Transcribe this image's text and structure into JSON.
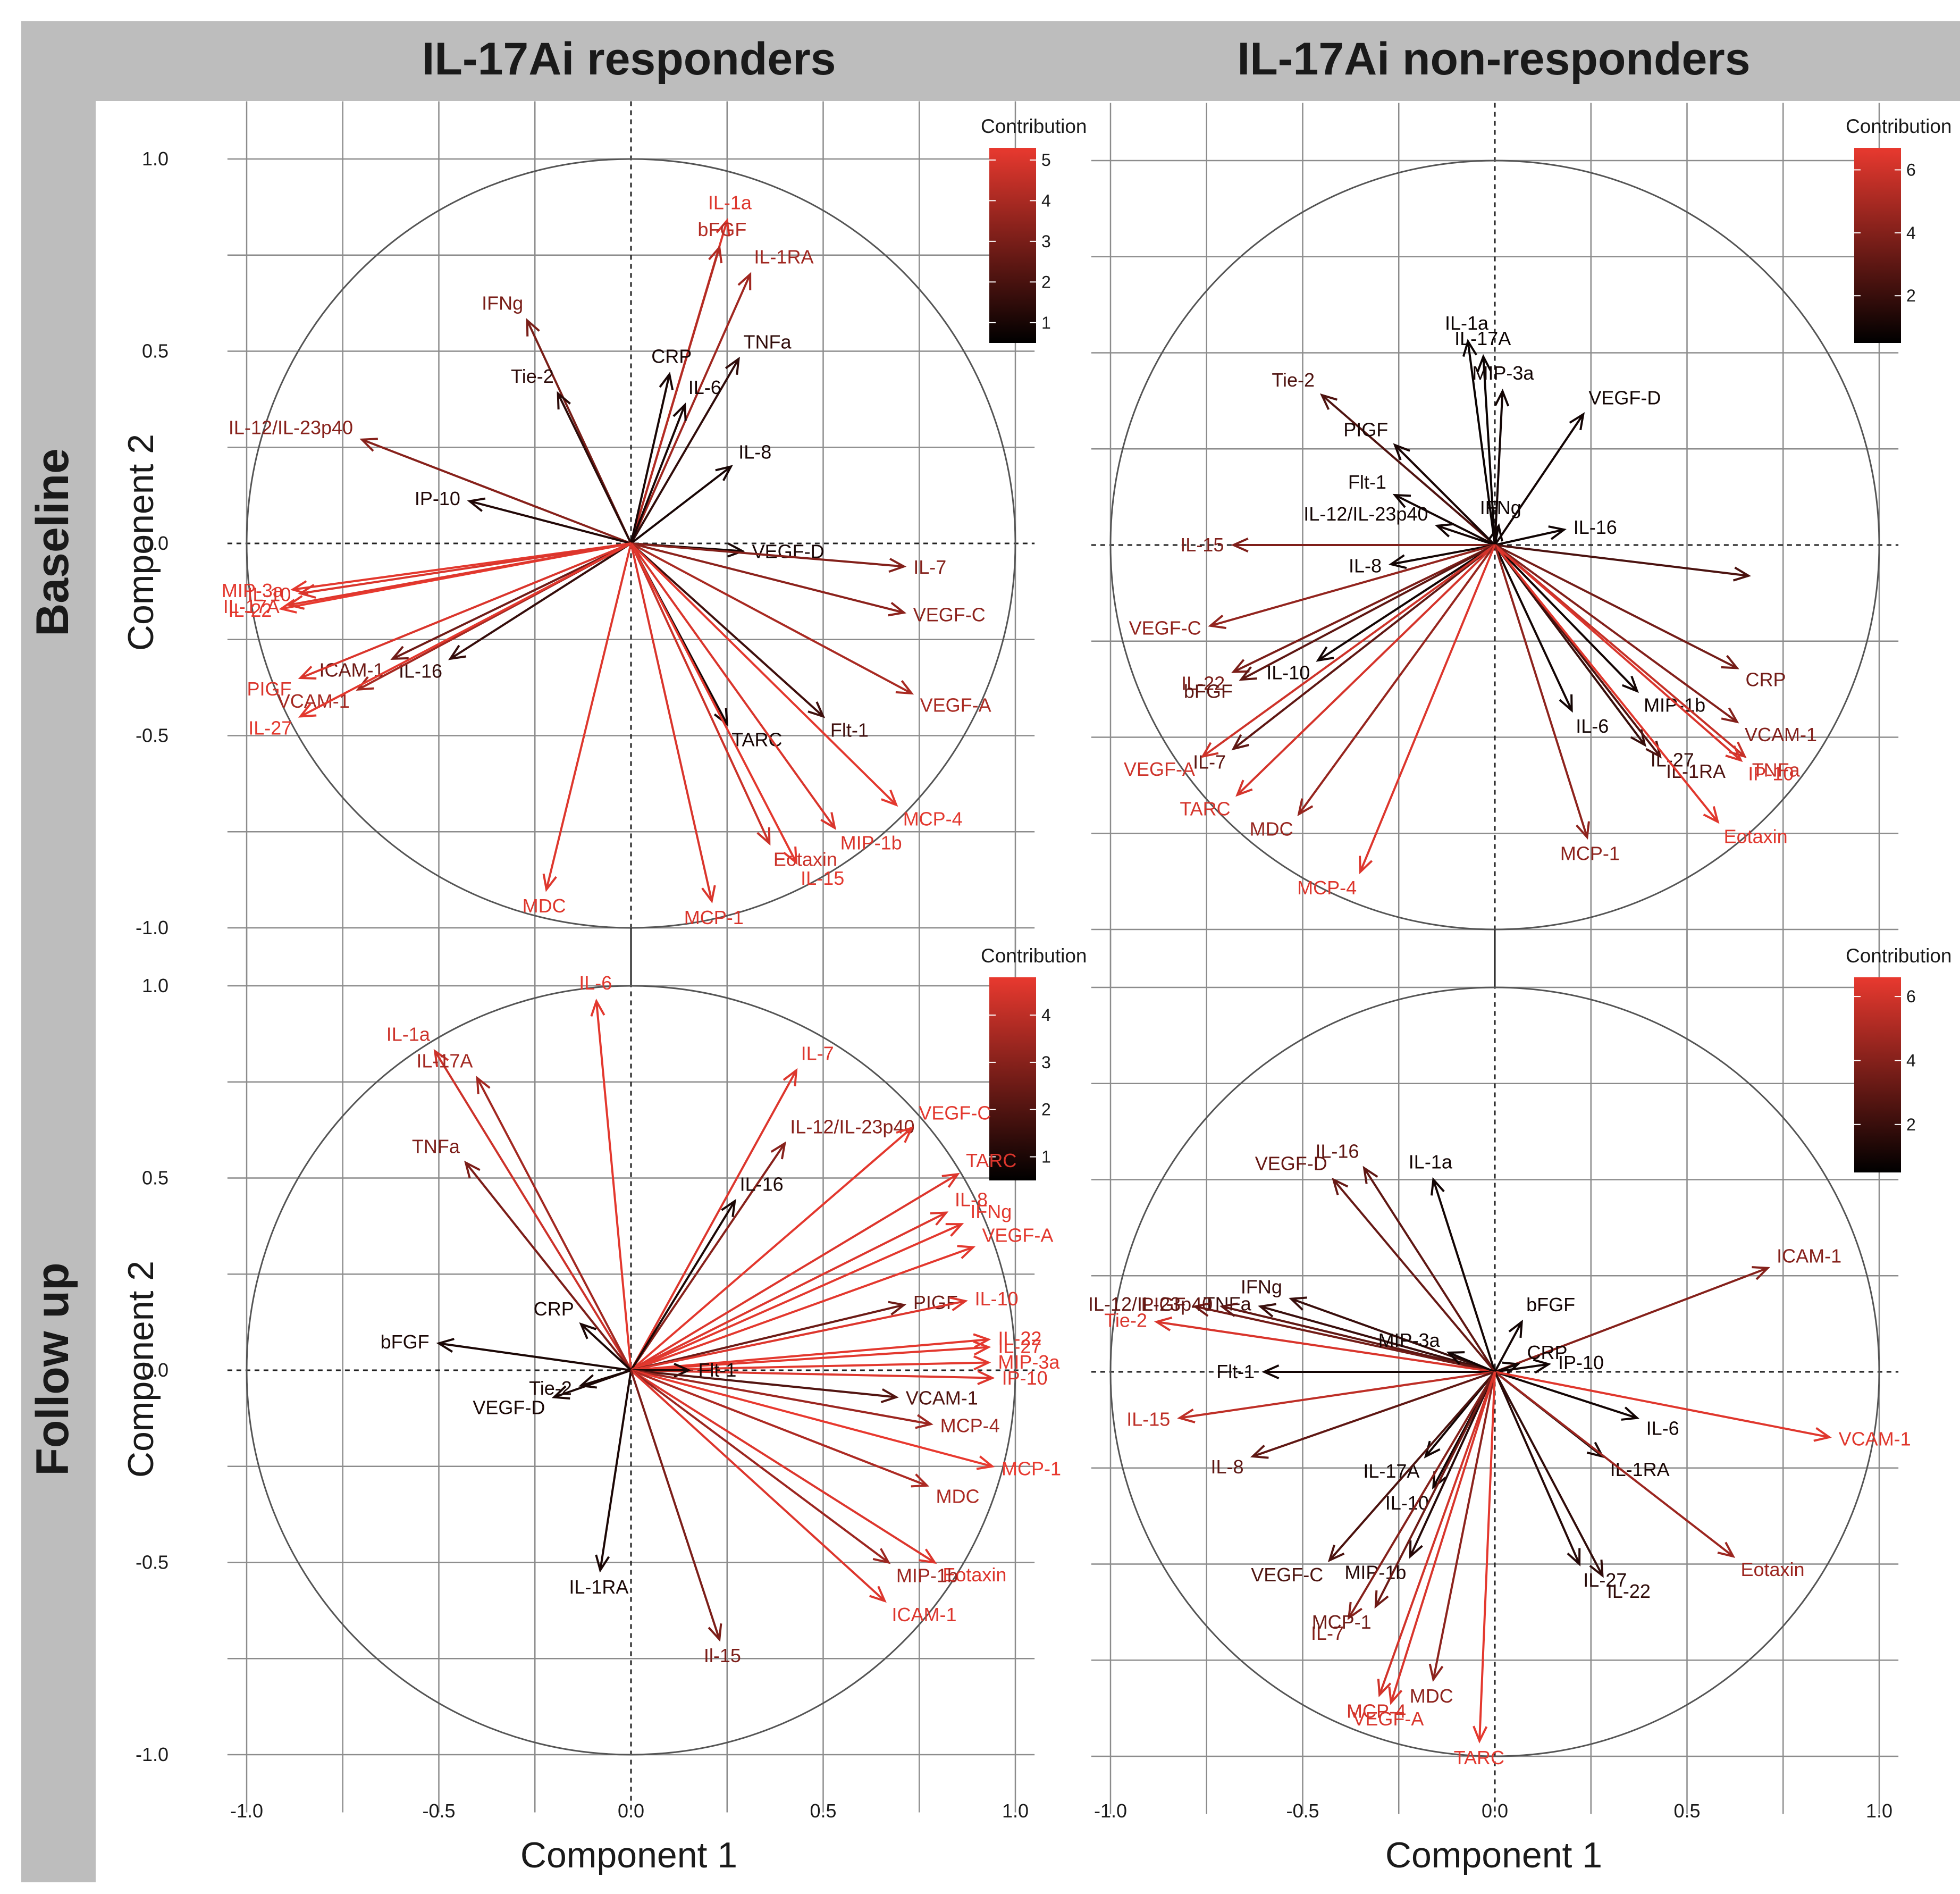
{
  "figure": {
    "column_titles": [
      "IL-17Ai responders",
      "IL-17Ai non-responders"
    ],
    "row_titles": [
      "Baseline",
      "Follow up"
    ],
    "xlabel": "Component 1",
    "ylabel": "Component 2",
    "legend_title": "Contribution",
    "colors": {
      "low": "#000000",
      "high": "#e8392f",
      "strip": "#bdbdbd"
    }
  },
  "chart_data": [
    {
      "type": "scatter",
      "subtype": "pca-variable-loadings",
      "panel": "IL-17Ai responders / Baseline",
      "xlim": [
        -1.0,
        1.0
      ],
      "ylim": [
        -1.0,
        1.0
      ],
      "x_ticks": [
        "-1.0",
        "-0.5",
        "0.0",
        "0.5",
        "1.0"
      ],
      "y_ticks": [
        "1.0",
        "0.5",
        "0.0",
        "-0.5",
        "-1.0"
      ],
      "grid": true,
      "unit_circle": true,
      "legend": {
        "title": "Contribution",
        "ticks": [
          1,
          2,
          3,
          4,
          5
        ],
        "range": [
          0.5,
          5.3
        ],
        "position": "top-right"
      },
      "variables": [
        {
          "name": "IL-1a",
          "x": 0.25,
          "y": 0.84,
          "contribution": 5.1
        },
        {
          "name": "bFGF",
          "x": 0.23,
          "y": 0.77,
          "contribution": 4.2
        },
        {
          "name": "IL-1RA",
          "x": 0.31,
          "y": 0.7,
          "contribution": 3.8
        },
        {
          "name": "IFNg",
          "x": -0.27,
          "y": 0.58,
          "contribution": 3.0
        },
        {
          "name": "TNFa",
          "x": 0.28,
          "y": 0.48,
          "contribution": 1.5
        },
        {
          "name": "CRP",
          "x": 0.1,
          "y": 0.44,
          "contribution": 1.0
        },
        {
          "name": "Tie-2",
          "x": -0.19,
          "y": 0.39,
          "contribution": 1.4
        },
        {
          "name": "IL-6",
          "x": 0.14,
          "y": 0.36,
          "contribution": 1.0
        },
        {
          "name": "IL-12/IL-23p40",
          "x": -0.7,
          "y": 0.27,
          "contribution": 3.3
        },
        {
          "name": "IL-8",
          "x": 0.26,
          "y": 0.2,
          "contribution": 1.0
        },
        {
          "name": "IP-10",
          "x": -0.42,
          "y": 0.11,
          "contribution": 1.2
        },
        {
          "name": "VEGF-D",
          "x": 0.29,
          "y": -0.02,
          "contribution": 1.0
        },
        {
          "name": "IL-7",
          "x": 0.71,
          "y": -0.06,
          "contribution": 3.2
        },
        {
          "name": "VEGF-C",
          "x": 0.71,
          "y": -0.18,
          "contribution": 3.4
        },
        {
          "name": "VEGF-A",
          "x": 0.73,
          "y": -0.39,
          "contribution": 4.0
        },
        {
          "name": "Flt-1",
          "x": 0.5,
          "y": -0.45,
          "contribution": 1.8
        },
        {
          "name": "TARC",
          "x": 0.25,
          "y": -0.47,
          "contribution": 1.0
        },
        {
          "name": "MCP-4",
          "x": 0.69,
          "y": -0.68,
          "contribution": 5.2
        },
        {
          "name": "MIP-1b",
          "x": 0.53,
          "y": -0.74,
          "contribution": 5.0
        },
        {
          "name": "Eotaxin",
          "x": 0.36,
          "y": -0.78,
          "contribution": 4.7
        },
        {
          "name": "IL-15",
          "x": 0.43,
          "y": -0.83,
          "contribution": 5.2
        },
        {
          "name": "MCP-1",
          "x": 0.21,
          "y": -0.93,
          "contribution": 5.0
        },
        {
          "name": "MDC",
          "x": -0.22,
          "y": -0.9,
          "contribution": 5.1
        },
        {
          "name": "MIP-3a",
          "x": -0.88,
          "y": -0.12,
          "contribution": 5.2
        },
        {
          "name": "IL-10",
          "x": -0.86,
          "y": -0.13,
          "contribution": 5.0
        },
        {
          "name": "IL-22",
          "x": -0.91,
          "y": -0.17,
          "contribution": 5.3
        },
        {
          "name": "IL-17A",
          "x": -0.89,
          "y": -0.16,
          "contribution": 5.1
        },
        {
          "name": "ICAM-1",
          "x": -0.62,
          "y": -0.3,
          "contribution": 2.8
        },
        {
          "name": "IL-16",
          "x": -0.47,
          "y": -0.3,
          "contribution": 1.6
        },
        {
          "name": "PIGF",
          "x": -0.86,
          "y": -0.35,
          "contribution": 5.0
        },
        {
          "name": "VCAM-1",
          "x": -0.71,
          "y": -0.38,
          "contribution": 3.9
        },
        {
          "name": "IL-27",
          "x": -0.86,
          "y": -0.45,
          "contribution": 5.2
        }
      ]
    },
    {
      "type": "scatter",
      "subtype": "pca-variable-loadings",
      "panel": "IL-17Ai non-responders / Baseline",
      "xlim": [
        -1.0,
        1.0
      ],
      "ylim": [
        -1.0,
        1.0
      ],
      "x_ticks": [
        "-1.0",
        "-0.5",
        "0.0",
        "0.5",
        "1.0"
      ],
      "y_ticks": [
        "1.0",
        "0.5",
        "0.0",
        "-0.5",
        "-1.0"
      ],
      "grid": true,
      "unit_circle": true,
      "legend": {
        "title": "Contribution",
        "ticks": [
          2,
          4,
          6
        ],
        "range": [
          0.5,
          6.7
        ],
        "position": "top-right"
      },
      "variables": [
        {
          "name": "IL-1a",
          "x": -0.07,
          "y": 0.53,
          "contribution": 0.8
        },
        {
          "name": "IL-17A",
          "x": -0.03,
          "y": 0.49,
          "contribution": 0.8
        },
        {
          "name": "MIP-3a",
          "x": 0.02,
          "y": 0.4,
          "contribution": 1.0
        },
        {
          "name": "VEGF-D",
          "x": 0.23,
          "y": 0.34,
          "contribution": 1.0
        },
        {
          "name": "Tie-2",
          "x": -0.45,
          "y": 0.39,
          "contribution": 2.6
        },
        {
          "name": "PIGF",
          "x": -0.26,
          "y": 0.26,
          "contribution": 1.2
        },
        {
          "name": "Flt-1",
          "x": -0.26,
          "y": 0.13,
          "contribution": 1.0
        },
        {
          "name": "IL-12/IL-23p40",
          "x": -0.15,
          "y": 0.05,
          "contribution": 1.0
        },
        {
          "name": "IFNg",
          "x": 0.01,
          "y": 0.05,
          "contribution": 0.9
        },
        {
          "name": "IL-16",
          "x": 0.18,
          "y": 0.04,
          "contribution": 0.9
        },
        {
          "name": "IL-15",
          "x": -0.68,
          "y": 0.0,
          "contribution": 3.9
        },
        {
          "name": "IL-8",
          "x": -0.27,
          "y": -0.05,
          "contribution": 1.0
        },
        {
          "name": "(unlabelled)",
          "x": 0.66,
          "y": -0.08,
          "contribution": 2.5
        },
        {
          "name": "VEGF-C",
          "x": -0.74,
          "y": -0.21,
          "contribution": 4.4
        },
        {
          "name": "CRP",
          "x": 0.63,
          "y": -0.32,
          "contribution": 3.6
        },
        {
          "name": "IL-10",
          "x": -0.46,
          "y": -0.3,
          "contribution": 1.0
        },
        {
          "name": "IL-22",
          "x": -0.68,
          "y": -0.33,
          "contribution": 3.8
        },
        {
          "name": "bFGF",
          "x": -0.66,
          "y": -0.35,
          "contribution": 3.0
        },
        {
          "name": "MIP-1b",
          "x": 0.37,
          "y": -0.38,
          "contribution": 1.0
        },
        {
          "name": "VCAM-1",
          "x": 0.63,
          "y": -0.46,
          "contribution": 4.0
        },
        {
          "name": "IL-6",
          "x": 0.2,
          "y": -0.43,
          "contribution": 1.0
        },
        {
          "name": "TNFa",
          "x": 0.65,
          "y": -0.55,
          "contribution": 5.8
        },
        {
          "name": "IL-27",
          "x": 0.39,
          "y": -0.52,
          "contribution": 2.0
        },
        {
          "name": "IL-1RA",
          "x": 0.43,
          "y": -0.55,
          "contribution": 2.6
        },
        {
          "name": "IL-7",
          "x": -0.68,
          "y": -0.53,
          "contribution": 3.0
        },
        {
          "name": "VEGF-A",
          "x": -0.76,
          "y": -0.55,
          "contribution": 6.0
        },
        {
          "name": "TARC",
          "x": -0.67,
          "y": -0.65,
          "contribution": 6.2
        },
        {
          "name": "MDC",
          "x": -0.51,
          "y": -0.7,
          "contribution": 4.5
        },
        {
          "name": "Eotaxin",
          "x": 0.58,
          "y": -0.72,
          "contribution": 6.5
        },
        {
          "name": "IP-10",
          "x": 0.64,
          "y": -0.56,
          "contribution": 6.3
        },
        {
          "name": "MCP-1",
          "x": 0.24,
          "y": -0.76,
          "contribution": 4.3
        },
        {
          "name": "MCP-4",
          "x": -0.35,
          "y": -0.85,
          "contribution": 6.4
        }
      ]
    },
    {
      "type": "scatter",
      "subtype": "pca-variable-loadings",
      "panel": "IL-17Ai responders / Follow up",
      "xlim": [
        -1.0,
        1.0
      ],
      "ylim": [
        -1.0,
        1.0
      ],
      "x_ticks": [
        "-1.0",
        "-0.5",
        "0.0",
        "0.5",
        "1.0"
      ],
      "y_ticks": [
        "1.0",
        "0.5",
        "0.0",
        "-0.5",
        "-1.0"
      ],
      "grid": true,
      "unit_circle": true,
      "legend": {
        "title": "Contribution",
        "ticks": [
          1,
          2,
          3,
          4
        ],
        "range": [
          0.5,
          4.8
        ],
        "position": "top-right"
      },
      "variables": [
        {
          "name": "IL-6",
          "x": -0.09,
          "y": 0.96,
          "contribution": 4.7
        },
        {
          "name": "IL-1a",
          "x": -0.51,
          "y": 0.83,
          "contribution": 4.3
        },
        {
          "name": "IL-17A",
          "x": -0.4,
          "y": 0.76,
          "contribution": 3.5
        },
        {
          "name": "IL-7",
          "x": 0.43,
          "y": 0.78,
          "contribution": 4.6
        },
        {
          "name": "IL-12/IL-23p40",
          "x": 0.4,
          "y": 0.59,
          "contribution": 3.0
        },
        {
          "name": "VEGF-C",
          "x": 0.73,
          "y": 0.63,
          "contribution": 4.7
        },
        {
          "name": "TNFa",
          "x": -0.43,
          "y": 0.54,
          "contribution": 2.8
        },
        {
          "name": "IL-16",
          "x": 0.27,
          "y": 0.44,
          "contribution": 1.0
        },
        {
          "name": "TARC",
          "x": 0.85,
          "y": 0.51,
          "contribution": 4.6
        },
        {
          "name": "IL-8",
          "x": 0.82,
          "y": 0.41,
          "contribution": 4.6
        },
        {
          "name": "IFNg",
          "x": 0.86,
          "y": 0.38,
          "contribution": 4.7
        },
        {
          "name": "VEGF-A",
          "x": 0.89,
          "y": 0.32,
          "contribution": 4.7
        },
        {
          "name": "PIGF",
          "x": 0.71,
          "y": 0.17,
          "contribution": 2.5
        },
        {
          "name": "IL-10",
          "x": 0.87,
          "y": 0.18,
          "contribution": 4.6
        },
        {
          "name": "CRP",
          "x": -0.13,
          "y": 0.12,
          "contribution": 1.0
        },
        {
          "name": "bFGF",
          "x": -0.5,
          "y": 0.07,
          "contribution": 1.0
        },
        {
          "name": "IL-22",
          "x": 0.93,
          "y": 0.08,
          "contribution": 4.7
        },
        {
          "name": "IL-27",
          "x": 0.93,
          "y": 0.06,
          "contribution": 4.7
        },
        {
          "name": "MIP-3a",
          "x": 0.93,
          "y": 0.02,
          "contribution": 4.7
        },
        {
          "name": "IP-10",
          "x": 0.94,
          "y": -0.02,
          "contribution": 4.6
        },
        {
          "name": "Flt-1",
          "x": 0.15,
          "y": 0.0,
          "contribution": 1.0
        },
        {
          "name": "Tie-2",
          "x": -0.13,
          "y": -0.04,
          "contribution": 1.0
        },
        {
          "name": "VEGF-D",
          "x": -0.2,
          "y": -0.07,
          "contribution": 1.0
        },
        {
          "name": "VCAM-1",
          "x": 0.69,
          "y": -0.07,
          "contribution": 2.0
        },
        {
          "name": "MCP-4",
          "x": 0.78,
          "y": -0.14,
          "contribution": 3.4
        },
        {
          "name": "MCP-1",
          "x": 0.94,
          "y": -0.25,
          "contribution": 4.8
        },
        {
          "name": "MDC",
          "x": 0.77,
          "y": -0.3,
          "contribution": 3.7
        },
        {
          "name": "Eotaxin",
          "x": 0.79,
          "y": -0.5,
          "contribution": 4.6
        },
        {
          "name": "MIP-1b",
          "x": 0.67,
          "y": -0.5,
          "contribution": 3.4
        },
        {
          "name": "ICAM-1",
          "x": 0.66,
          "y": -0.6,
          "contribution": 4.6
        },
        {
          "name": "IL-1RA",
          "x": -0.08,
          "y": -0.52,
          "contribution": 1.0
        },
        {
          "name": "Il-15",
          "x": 0.23,
          "y": -0.7,
          "contribution": 2.8
        }
      ]
    },
    {
      "type": "scatter",
      "subtype": "pca-variable-loadings",
      "panel": "IL-17Ai non-responders / Follow up",
      "xlim": [
        -1.0,
        1.0
      ],
      "ylim": [
        -1.0,
        1.0
      ],
      "x_ticks": [
        "-1.0",
        "-0.5",
        "0.0",
        "0.5",
        "1.0"
      ],
      "y_ticks": [
        "1.0",
        "0.5",
        "0.0",
        "-0.5",
        "-1.0"
      ],
      "grid": true,
      "unit_circle": true,
      "legend": {
        "title": "Contribution",
        "ticks": [
          2,
          4,
          6
        ],
        "range": [
          0.5,
          6.6
        ],
        "position": "top-right"
      },
      "variables": [
        {
          "name": "IL-16",
          "x": -0.34,
          "y": 0.53,
          "contribution": 3.0
        },
        {
          "name": "IL-1a",
          "x": -0.16,
          "y": 0.5,
          "contribution": 1.0
        },
        {
          "name": "VEGF-D",
          "x": -0.42,
          "y": 0.5,
          "contribution": 3.2
        },
        {
          "name": "ICAM-1",
          "x": 0.71,
          "y": 0.27,
          "contribution": 4.0
        },
        {
          "name": "IFNg",
          "x": -0.53,
          "y": 0.19,
          "contribution": 2.0
        },
        {
          "name": "TNFa",
          "x": -0.61,
          "y": 0.17,
          "contribution": 2.0
        },
        {
          "name": "PIGF",
          "x": -0.78,
          "y": 0.17,
          "contribution": 3.5
        },
        {
          "name": "IL-12/IL-23p40",
          "x": -0.71,
          "y": 0.17,
          "contribution": 3.0
        },
        {
          "name": "Tie-2",
          "x": -0.88,
          "y": 0.13,
          "contribution": 6.2
        },
        {
          "name": "bFGF",
          "x": 0.07,
          "y": 0.13,
          "contribution": 1.0
        },
        {
          "name": "MIP-3a",
          "x": -0.12,
          "y": 0.05,
          "contribution": 1.0
        },
        {
          "name": "CRP",
          "x": 0.06,
          "y": 0.02,
          "contribution": 1.0
        },
        {
          "name": "IP-10",
          "x": 0.14,
          "y": 0.02,
          "contribution": 1.0
        },
        {
          "name": "Flt-1",
          "x": -0.6,
          "y": 0.0,
          "contribution": 1.0
        },
        {
          "name": "IL-15",
          "x": -0.82,
          "y": -0.12,
          "contribution": 5.5
        },
        {
          "name": "IL-8",
          "x": -0.63,
          "y": -0.22,
          "contribution": 3.0
        },
        {
          "name": "IL-6",
          "x": 0.37,
          "y": -0.12,
          "contribution": 1.0
        },
        {
          "name": "VCAM-1",
          "x": 0.87,
          "y": -0.17,
          "contribution": 6.4
        },
        {
          "name": "IL-1RA",
          "x": 0.28,
          "y": -0.22,
          "contribution": 1.2
        },
        {
          "name": "IL-17A",
          "x": -0.18,
          "y": -0.22,
          "contribution": 1.0
        },
        {
          "name": "IL-10",
          "x": -0.16,
          "y": -0.3,
          "contribution": 1.0
        },
        {
          "name": "Eotaxin",
          "x": 0.62,
          "y": -0.48,
          "contribution": 4.6
        },
        {
          "name": "MIP-1b",
          "x": -0.22,
          "y": -0.48,
          "contribution": 1.5
        },
        {
          "name": "VEGF-C",
          "x": -0.43,
          "y": -0.49,
          "contribution": 2.5
        },
        {
          "name": "IL-27",
          "x": 0.22,
          "y": -0.5,
          "contribution": 1.5
        },
        {
          "name": "IL-22",
          "x": 0.28,
          "y": -0.53,
          "contribution": 1.8
        },
        {
          "name": "IL-7",
          "x": -0.38,
          "y": -0.64,
          "contribution": 4.0
        },
        {
          "name": "MCP-1",
          "x": -0.31,
          "y": -0.61,
          "contribution": 3.4
        },
        {
          "name": "MDC",
          "x": -0.16,
          "y": -0.8,
          "contribution": 4.2
        },
        {
          "name": "MCP-4",
          "x": -0.3,
          "y": -0.84,
          "contribution": 6.0
        },
        {
          "name": "VEGF-A",
          "x": -0.27,
          "y": -0.86,
          "contribution": 6.2
        },
        {
          "name": "TARC",
          "x": -0.04,
          "y": -0.96,
          "contribution": 6.5
        }
      ]
    }
  ]
}
